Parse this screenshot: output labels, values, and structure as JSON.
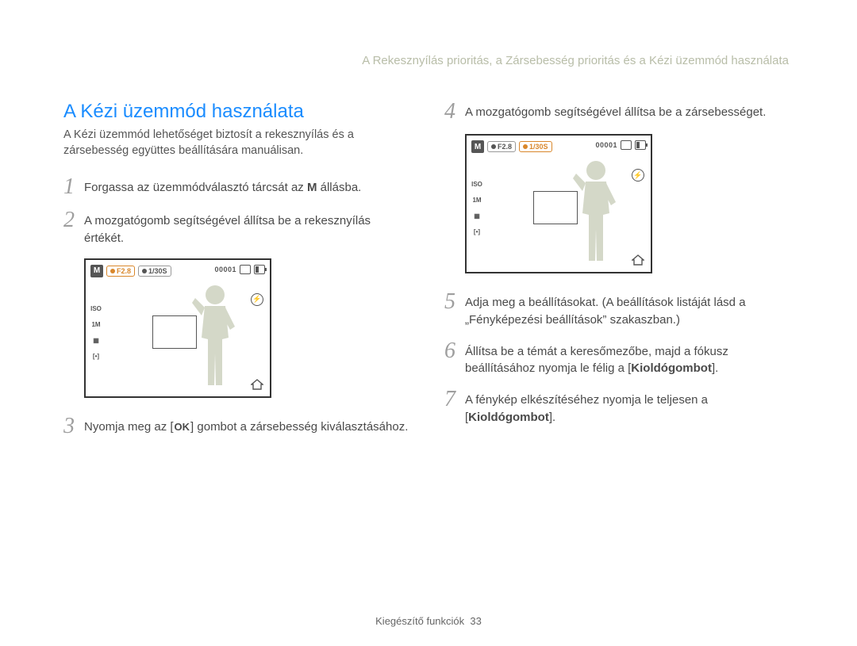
{
  "breadcrumb": "A Rekesznyílás prioritás, a Zársebesség prioritás és a Kézi üzemmód használata",
  "section_title": "A Kézi üzemmód használata",
  "intro": "A Kézi üzemmód lehetőséget biztosít a rekesznyílás és a zársebesség együttes beállítására manuálisan.",
  "steps_left": [
    {
      "n": "1",
      "html": "Forgassa az üzemmódválasztó tárcsát az <span class='m-letter'>M</span> állásba."
    },
    {
      "n": "2",
      "html": "A mozgatógomb segítségével állítsa be a rekesznyílás értékét."
    },
    {
      "n": "3",
      "html": "Nyomja meg az [<span class='ok-box'>OK</span>] gombot a zársebesség kiválasztásához."
    }
  ],
  "steps_right": [
    {
      "n": "4",
      "html": "A mozgatógomb segítségével állítsa be a zársebességet."
    },
    {
      "n": "5",
      "html": "Adja meg a beállításokat. (A beállítások listáját lásd a „Fényképezési beállítások” szakaszban.)"
    },
    {
      "n": "6",
      "html": "Állítsa be a témát a keresőmezőbe, majd a fókusz beállításához nyomja le félig a [<b>Kioldógombot</b>]."
    },
    {
      "n": "7",
      "html": "A fénykép elkészítéséhez nyomja le teljesen a [<b>Kioldógombot</b>]."
    }
  ],
  "lcd": {
    "mode_badge": "M",
    "aperture": "F2.8",
    "shutter": "1/30S",
    "counter": "00001",
    "left_icons": [
      "ISO",
      "1M",
      "▦",
      "[•]"
    ]
  },
  "lcd1_highlight": "aperture",
  "lcd2_highlight": "shutter",
  "footer_label": "Kiegészítő funkciók",
  "footer_page": "33",
  "colors": {
    "title": "#1a8cff",
    "breadcrumb": "#b8bda8",
    "step_num": "#9e9e9e",
    "highlight": "#d9872b",
    "body": "#4a4a4a"
  }
}
